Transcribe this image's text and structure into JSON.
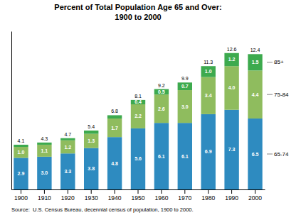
{
  "chart_data": {
    "type": "bar",
    "stacked": true,
    "title": "Percent of Total Population Age 65 and Over:\n1900 to 2000",
    "source": "Source:  U.S. Census Bureau, decennial census of population, 1900 to 2000.",
    "categories": [
      "1900",
      "1910",
      "1920",
      "1930",
      "1940",
      "1950",
      "1960",
      "1970",
      "1980",
      "1990",
      "2000"
    ],
    "series": [
      {
        "name": "65-74",
        "color": "#2e8bc0",
        "values": [
          2.9,
          3.0,
          3.3,
          3.8,
          4.8,
          5.6,
          6.1,
          6.1,
          6.9,
          7.3,
          6.5
        ],
        "value_labels": [
          "2.9",
          "3.0",
          "3.3",
          "3.8",
          "4.8",
          "5.6",
          "6.1",
          "6.1",
          "6.9",
          "7.3",
          "6.5"
        ]
      },
      {
        "name": "75-84",
        "color": "#8fbc5e",
        "values": [
          1.0,
          1.1,
          1.2,
          1.3,
          1.7,
          2.2,
          2.6,
          3.0,
          3.4,
          4.0,
          4.4
        ],
        "value_labels": [
          "1.0",
          "1.1",
          "1.2",
          "1.3",
          "1.7",
          "2.2",
          "2.6",
          "3.0",
          "3.4",
          "4.0",
          "4.4"
        ]
      },
      {
        "name": "85+",
        "color": "#3daa4e",
        "values": [
          0.2,
          0.2,
          0.2,
          0.3,
          0.3,
          0.4,
          0.5,
          0.7,
          1.0,
          1.2,
          1.5
        ],
        "value_labels": [
          null,
          null,
          null,
          null,
          null,
          "0.4",
          "0.5",
          "0.7",
          "1.0",
          "1.2",
          "1.5"
        ]
      }
    ],
    "totals": [
      4.1,
      4.3,
      4.7,
      5.4,
      6.8,
      8.1,
      9.2,
      9.9,
      11.3,
      12.6,
      12.4
    ],
    "data_labels": true,
    "ylim": [
      0,
      14.5
    ],
    "yticks": [],
    "tick_labels": "x"
  }
}
